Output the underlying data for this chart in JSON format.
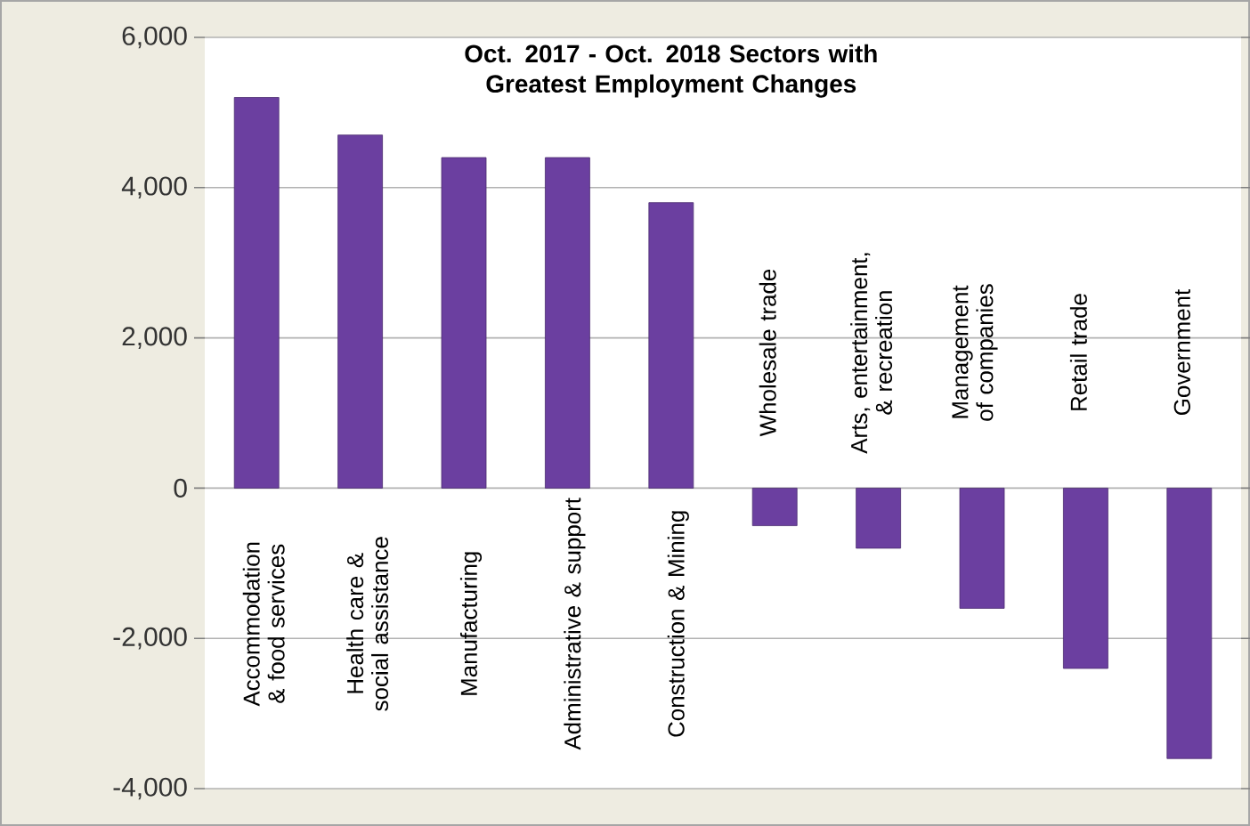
{
  "chart_data": {
    "type": "bar",
    "title": "Oct. 2017 - Oct. 2018 Sectors with Greatest Employment Changes",
    "categories": [
      "Accommodation & food services",
      "Health care & social assistance",
      "Manufacturing",
      "Administrative & support",
      "Construction & Mining",
      "Wholesale trade",
      "Arts, entertainment, & recreation",
      "Management of companies",
      "Retail trade",
      "Government"
    ],
    "values": [
      5200,
      4700,
      4400,
      4400,
      3800,
      -500,
      -800,
      -1600,
      -2400,
      -3600
    ],
    "color": "#6b3fa0",
    "ylim": [
      -4000,
      6000
    ],
    "yticks": [
      {
        "value": -4000,
        "label": "-4,000"
      },
      {
        "value": -2000,
        "label": "-2,000"
      },
      {
        "value": 0,
        "label": "0"
      },
      {
        "value": 2000,
        "label": "2,000"
      },
      {
        "value": 4000,
        "label": "4,000"
      },
      {
        "value": 6000,
        "label": "6,000"
      }
    ],
    "grid": "y"
  }
}
